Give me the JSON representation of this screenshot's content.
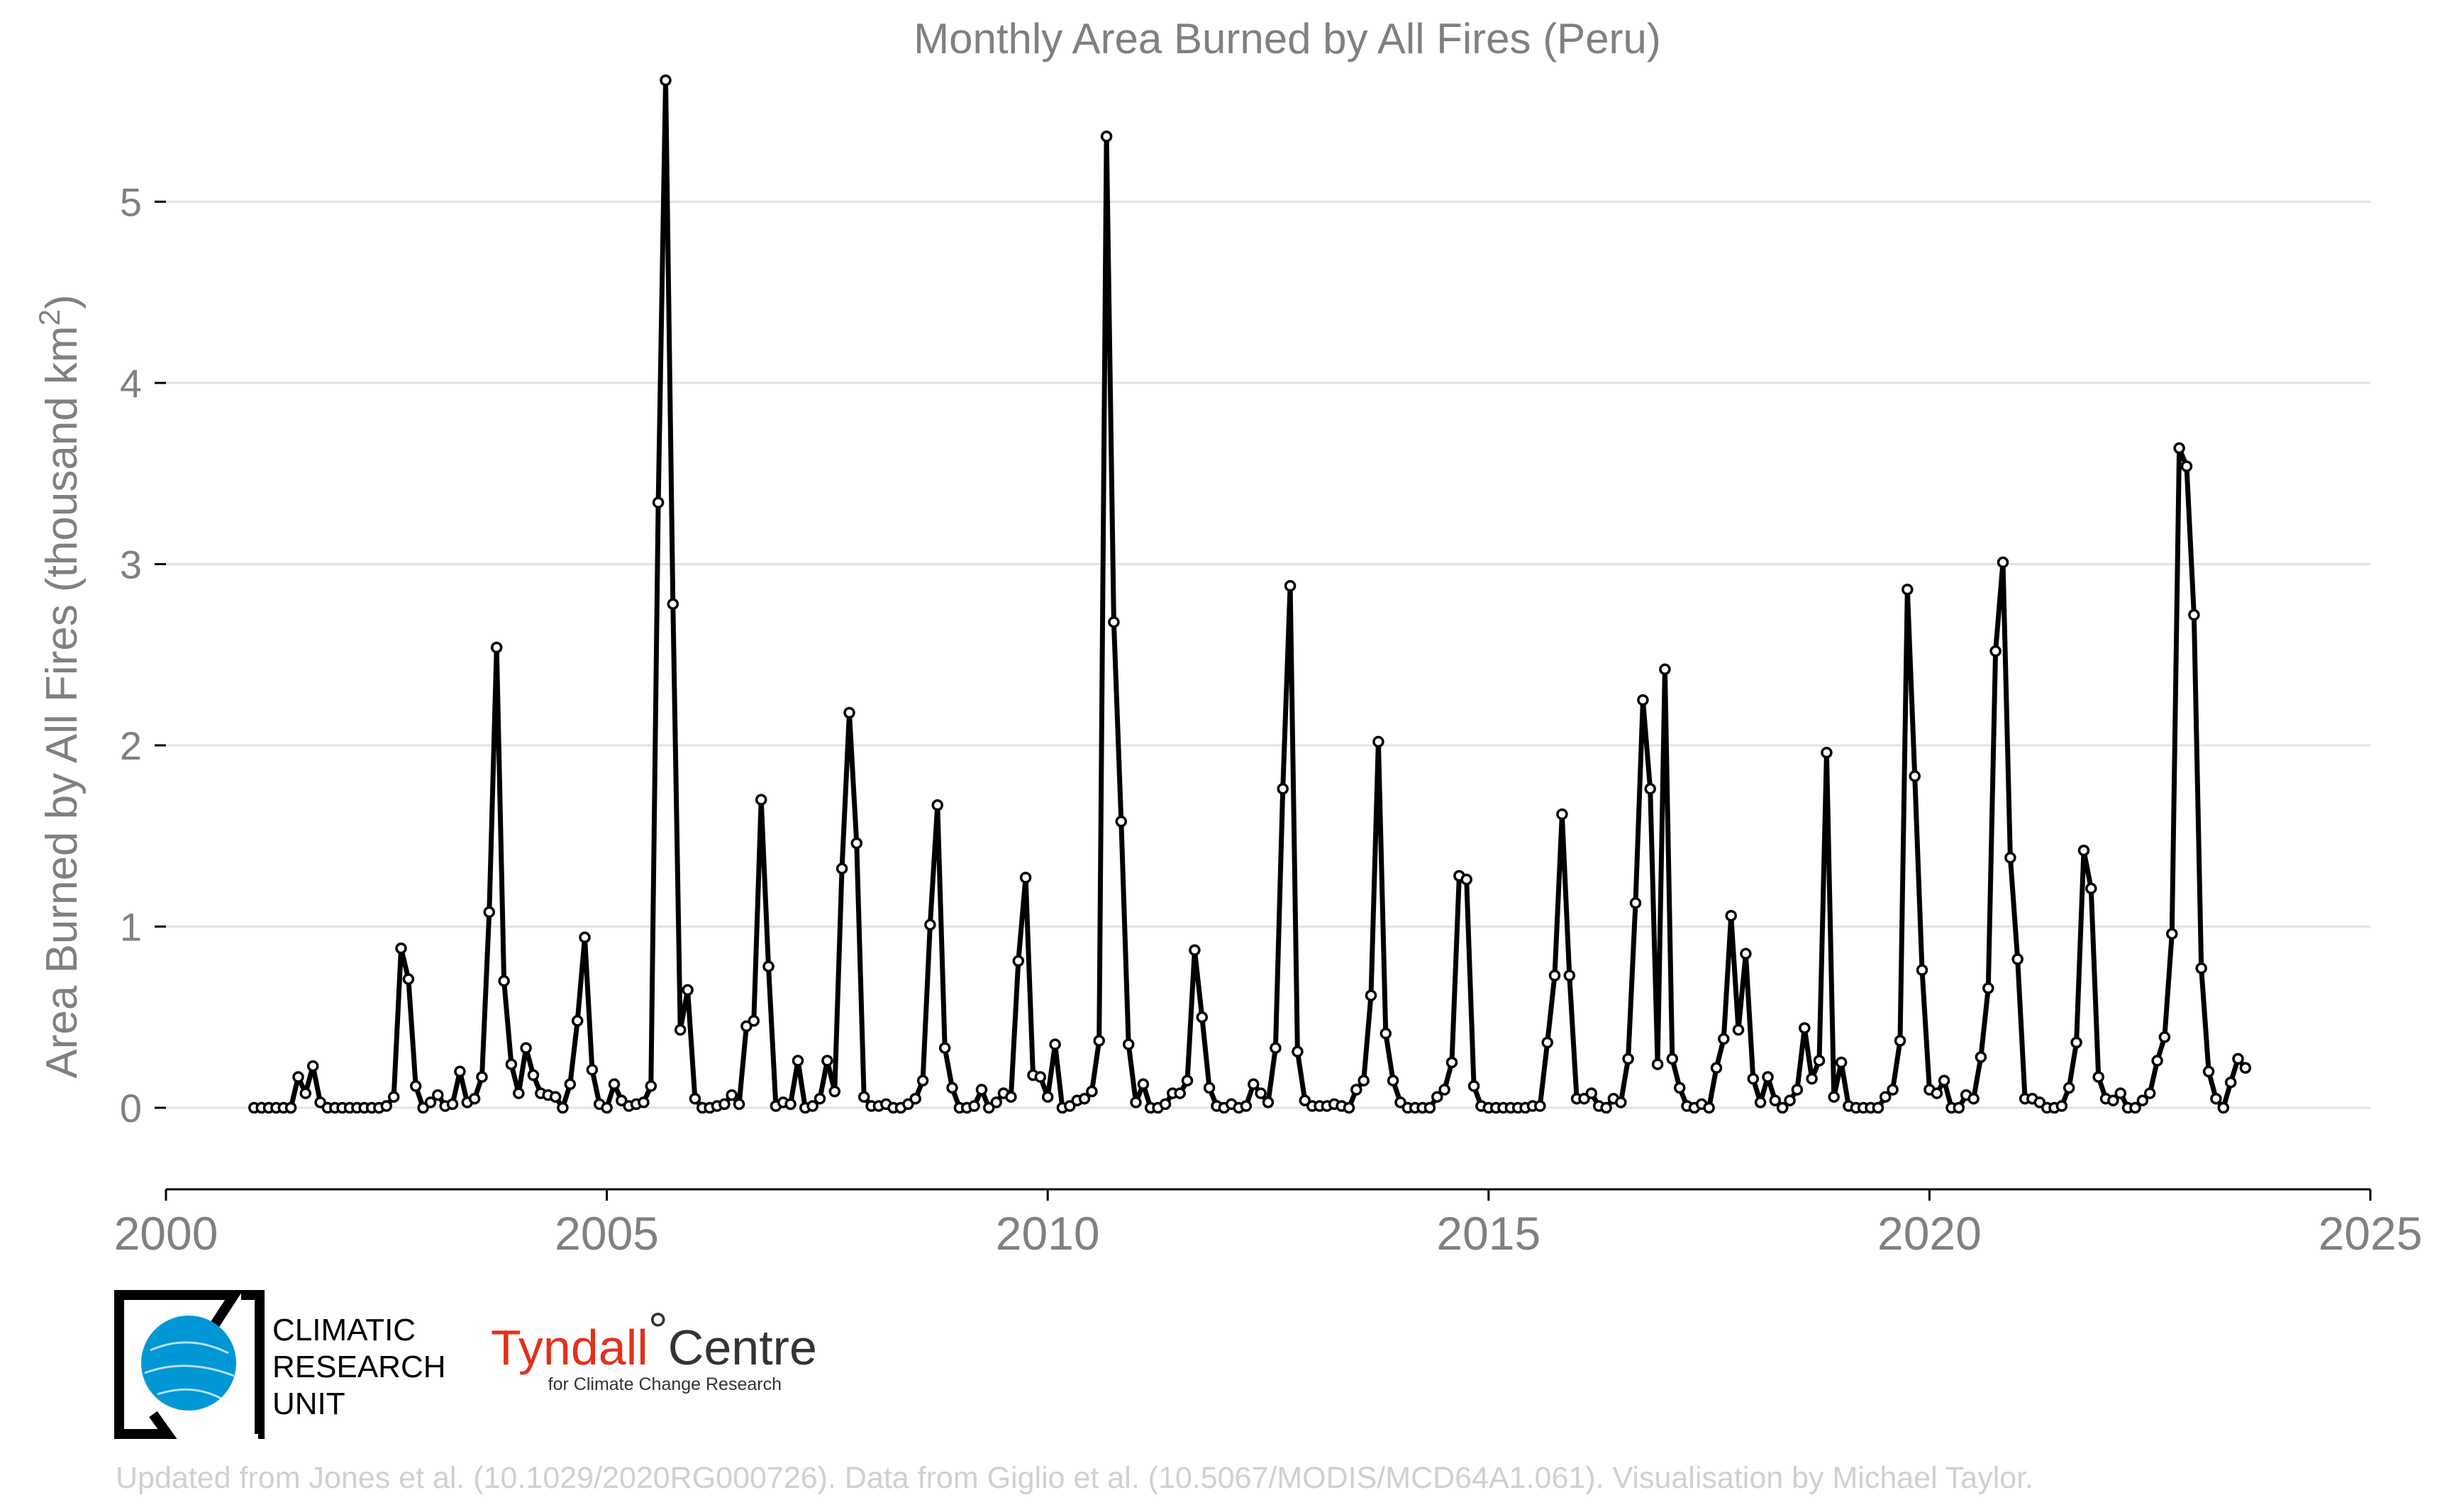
{
  "chart_data": {
    "type": "line",
    "title": "Monthly Area Burned by All Fires (Peru)",
    "ylabel": "Area Burned by All Fires (thousand km",
    "ylabel_sup": "2",
    "ylabel_close": ")",
    "xlim": [
      2000,
      2025
    ],
    "ylim": [
      -0.45,
      5.8
    ],
    "x_ticks": [
      2000,
      2005,
      2010,
      2015,
      2020,
      2025
    ],
    "y_ticks": [
      0,
      1,
      2,
      3,
      4,
      5
    ],
    "grid": "horizontal",
    "series_color": "#000000",
    "x_start": "2001-01",
    "x_step": "1 month",
    "values": [
      0,
      0,
      0,
      0,
      0,
      0,
      0.17,
      0.08,
      0.23,
      0.03,
      0,
      0,
      0,
      0,
      0,
      0,
      0,
      0,
      0.01,
      0.06,
      0.88,
      0.71,
      0.12,
      0,
      0.03,
      0.07,
      0.01,
      0.02,
      0.2,
      0.03,
      0.05,
      0.17,
      1.08,
      2.54,
      0.7,
      0.24,
      0.08,
      0.33,
      0.18,
      0.08,
      0.07,
      0.06,
      0,
      0.13,
      0.48,
      0.94,
      0.21,
      0.02,
      0,
      0.13,
      0.04,
      0.01,
      0.02,
      0.03,
      0.12,
      3.34,
      5.67,
      2.78,
      0.43,
      0.65,
      0.05,
      0,
      0,
      0.01,
      0.02,
      0.07,
      0.02,
      0.45,
      0.48,
      1.7,
      0.78,
      0.01,
      0.03,
      0.02,
      0.26,
      0,
      0.01,
      0.05,
      0.26,
      0.09,
      1.32,
      2.18,
      1.46,
      0.06,
      0.01,
      0.01,
      0.02,
      0,
      0,
      0.02,
      0.05,
      0.15,
      1.01,
      1.67,
      0.33,
      0.11,
      0,
      0,
      0.01,
      0.1,
      0,
      0.03,
      0.08,
      0.06,
      0.81,
      1.27,
      0.18,
      0.17,
      0.06,
      0.35,
      0,
      0.01,
      0.04,
      0.05,
      0.09,
      0.37,
      5.36,
      2.68,
      1.58,
      0.35,
      0.03,
      0.13,
      0,
      0,
      0.02,
      0.08,
      0.08,
      0.15,
      0.87,
      0.5,
      0.11,
      0.01,
      0,
      0.02,
      0,
      0.01,
      0.13,
      0.08,
      0.03,
      0.33,
      1.76,
      2.88,
      0.31,
      0.04,
      0.01,
      0.01,
      0.01,
      0.02,
      0.01,
      0,
      0.1,
      0.15,
      0.62,
      2.02,
      0.41,
      0.15,
      0.03,
      0,
      0,
      0,
      0,
      0.06,
      0.1,
      0.25,
      1.28,
      1.26,
      0.12,
      0.01,
      0,
      0,
      0,
      0,
      0,
      0,
      0.01,
      0.01,
      0.36,
      0.73,
      1.62,
      0.73,
      0.05,
      0.05,
      0.08,
      0.01,
      0,
      0.05,
      0.03,
      0.27,
      1.13,
      2.25,
      1.76,
      0.24,
      2.42,
      0.27,
      0.11,
      0.01,
      0,
      0.02,
      0,
      0.22,
      0.38,
      1.06,
      0.43,
      0.85,
      0.16,
      0.03,
      0.17,
      0.04,
      0,
      0.04,
      0.1,
      0.44,
      0.16,
      0.26,
      1.96,
      0.06,
      0.25,
      0.01,
      0,
      0,
      0,
      0,
      0.06,
      0.1,
      0.37,
      2.86,
      1.83,
      0.76,
      0.1,
      0.08,
      0.15,
      0,
      0,
      0.07,
      0.05,
      0.28,
      0.66,
      2.52,
      3.01,
      1.38,
      0.82,
      0.05,
      0.05,
      0.03,
      0,
      0,
      0.01,
      0.11,
      0.36,
      1.42,
      1.21,
      0.17,
      0.05,
      0.04,
      0.08,
      0,
      0,
      0.04,
      0.08,
      0.26,
      0.39,
      0.96,
      3.64,
      3.54,
      2.72,
      0.77,
      0.2,
      0.05,
      0,
      0.14,
      0.27,
      0.22
    ]
  },
  "logos": {
    "cru": [
      "CLIMATIC",
      "RESEARCH",
      "UNIT"
    ],
    "tyndall_main": "Tyndall",
    "tyndall_degree": "°",
    "tyndall_centre": "Centre",
    "tyndall_sub": "for Climate Change Research"
  },
  "footer": "Updated from Jones et al. (10.1029/2020RG000726). Data from Giglio et al. (10.5067/MODIS/MCD64A1.061). Visualisation by Michael Taylor.",
  "colors": {
    "cru_blue": "#0097d6",
    "tyndall_red": "#e3301c",
    "line": "#000000"
  }
}
